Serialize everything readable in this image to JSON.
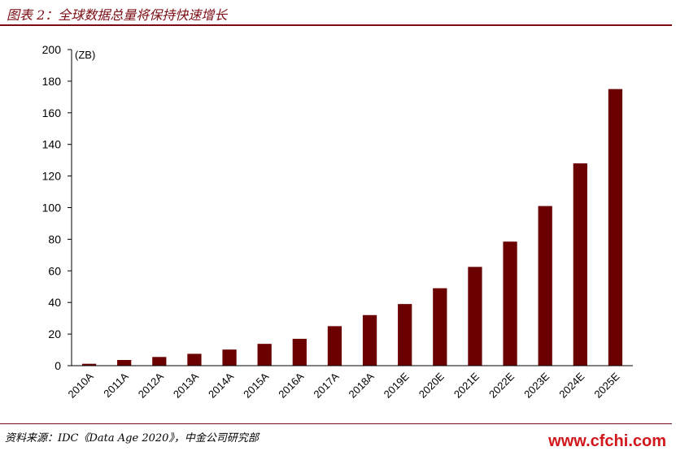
{
  "header": {
    "title": "图表 2：全球数据总量将保持快速增长"
  },
  "footer": {
    "source": "资料来源：IDC《Data Age 2020》，中金公司研究部",
    "site": "www.cfchi.com"
  },
  "colors": {
    "bar": "#6b0000",
    "accent": "#7b0d14",
    "site": "#d2171c"
  },
  "chart_data": {
    "type": "bar",
    "title": "全球数据总量将保持快速增长",
    "unit_label": "(ZB)",
    "ylim": [
      0,
      200
    ],
    "y_ticks": [
      0,
      20,
      40,
      60,
      80,
      100,
      120,
      140,
      160,
      180,
      200
    ],
    "grid": false,
    "legend": "none",
    "categories": [
      "2010A",
      "2011A",
      "2012A",
      "2013A",
      "2014A",
      "2015A",
      "2016A",
      "2017A",
      "2018A",
      "2019E",
      "2020E",
      "2021E",
      "2022E",
      "2023E",
      "2024E",
      "2025E"
    ],
    "series": [
      {
        "values": [
          1.2,
          3.6,
          5.5,
          7.5,
          10.2,
          13.8,
          17.0,
          25.0,
          32.0,
          39.0,
          49.0,
          62.5,
          78.5,
          101.0,
          128.0,
          175.0
        ]
      }
    ]
  }
}
